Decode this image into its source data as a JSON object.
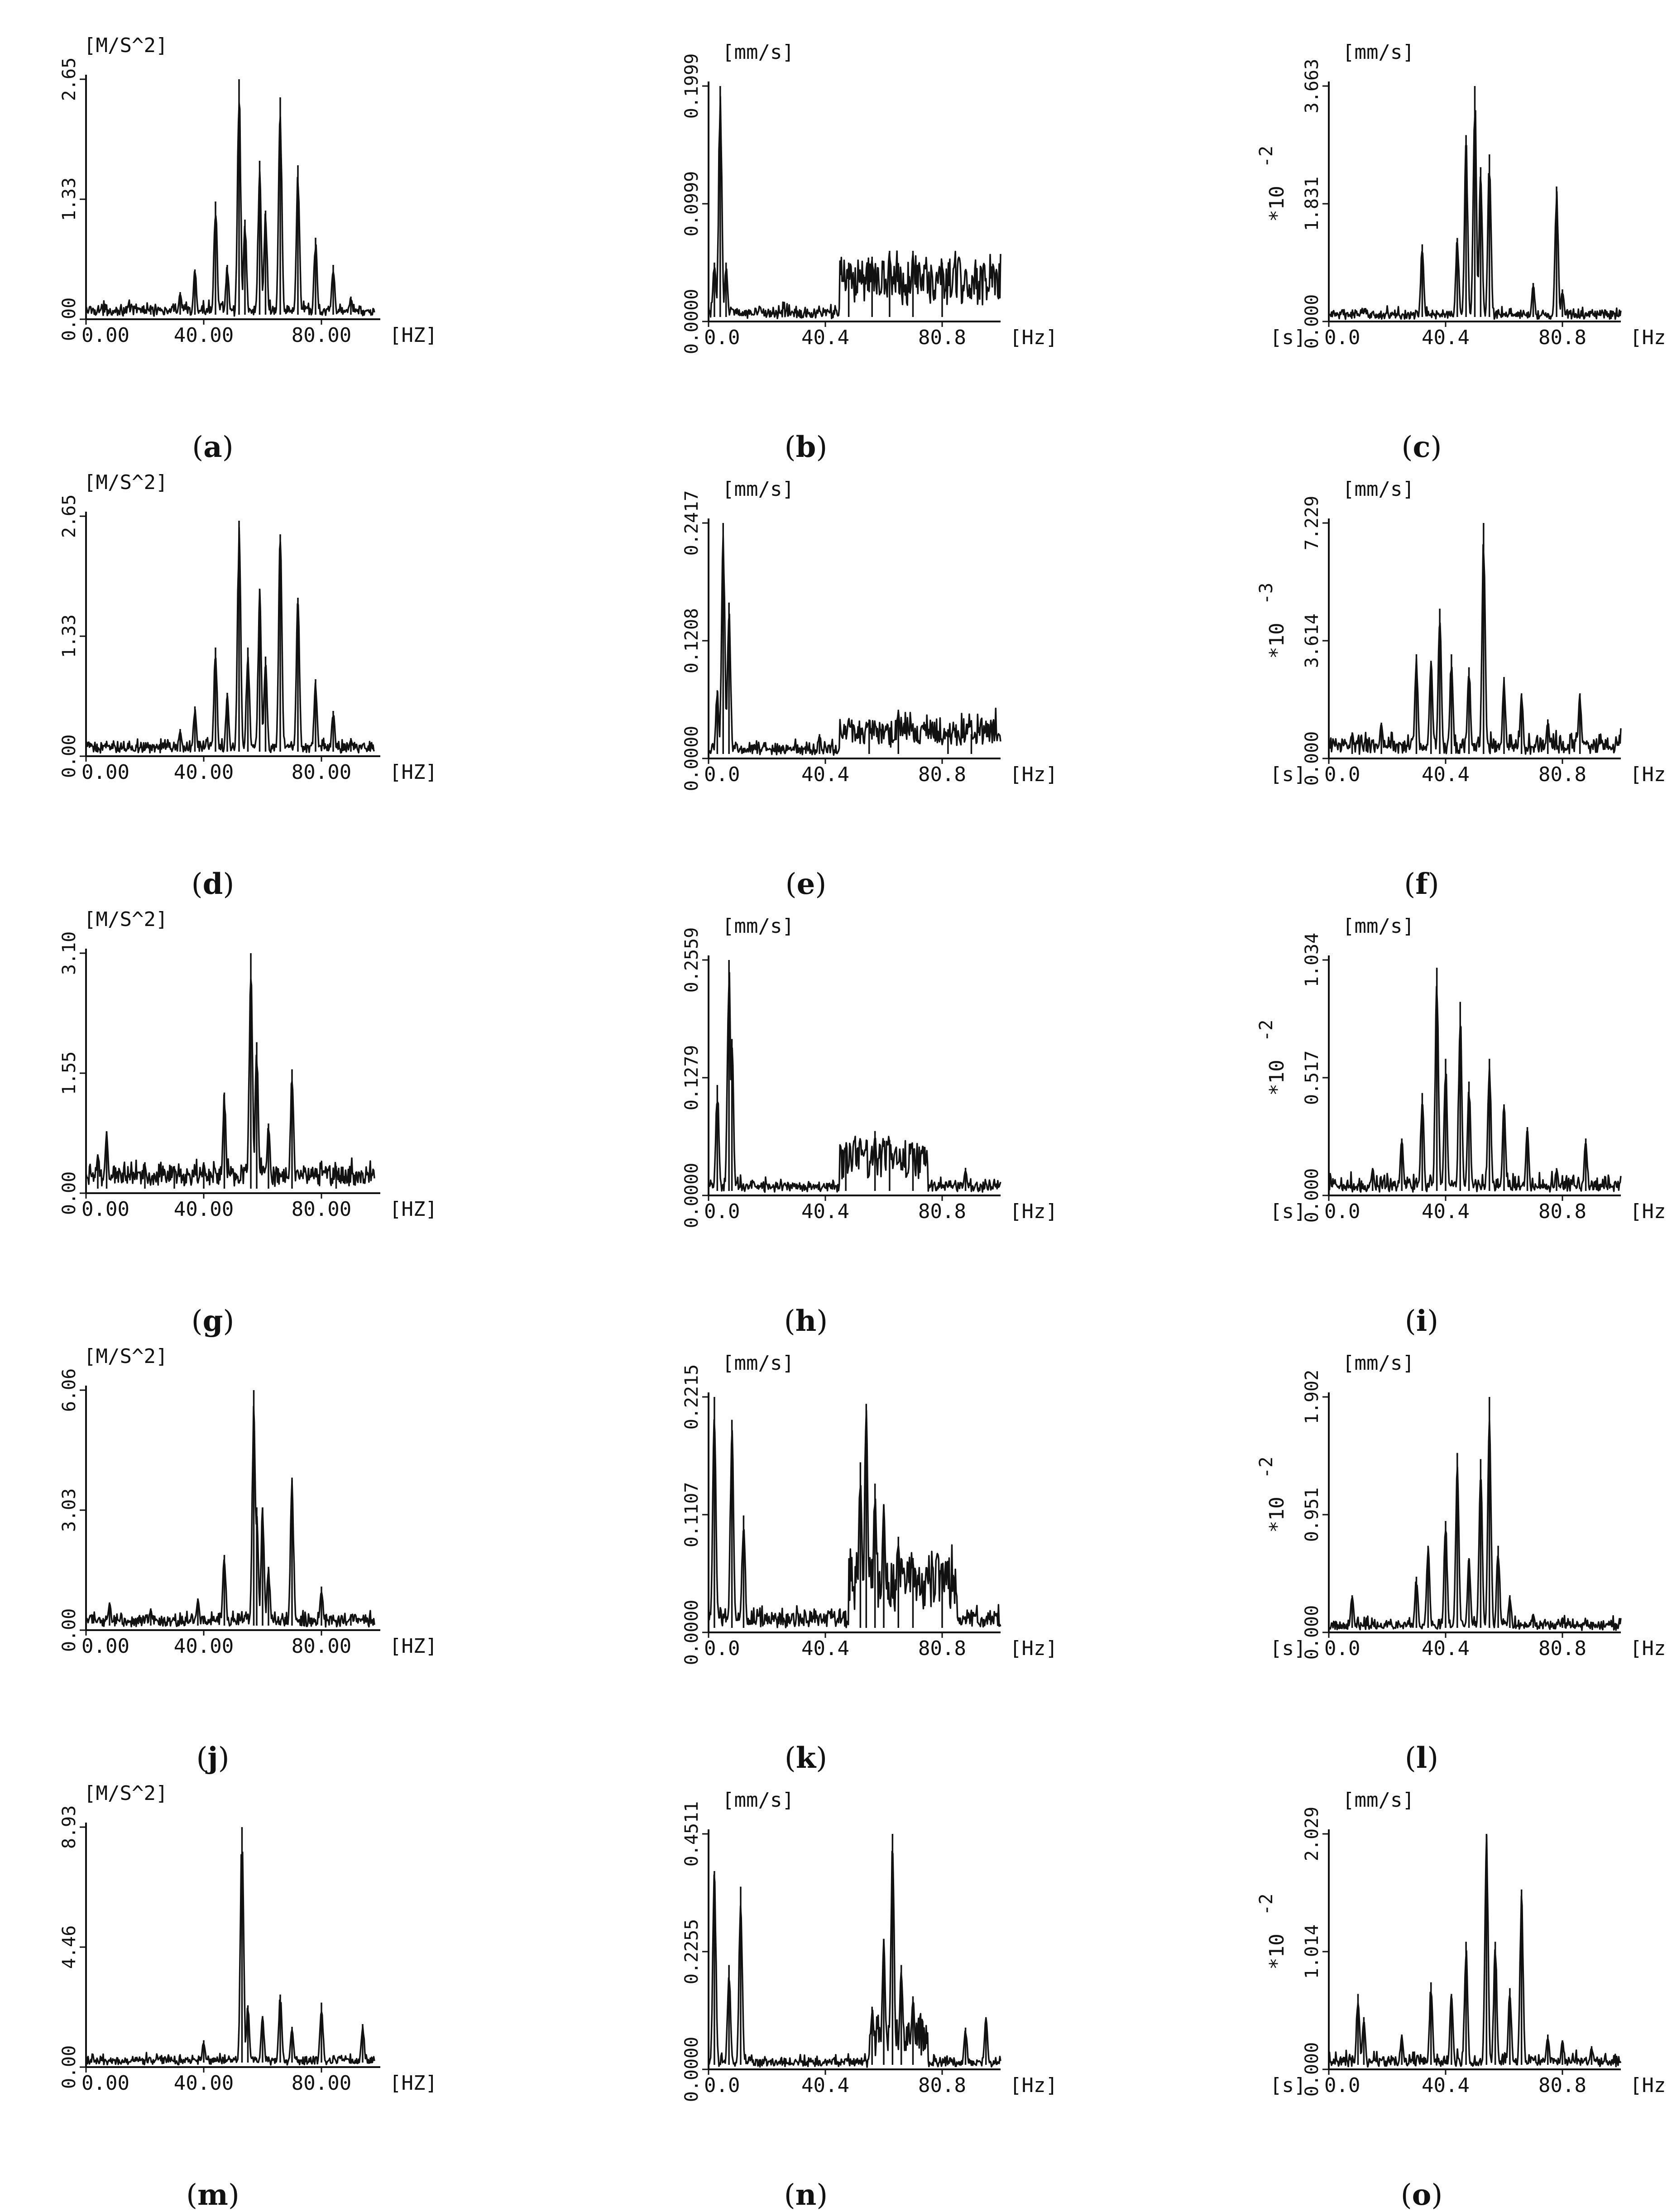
{
  "figure_title": "",
  "chart_data": [
    {
      "id": "a",
      "type": "line",
      "caption_letter": "a",
      "style": "acc",
      "yunit": "[M/S^2]",
      "multiplier_base": "",
      "multiplier_exp": "",
      "xlabel": "[HZ]",
      "xticks": [
        "0.00",
        "40.00",
        "80.00"
      ],
      "yticks": [
        "0.00",
        "1.33",
        "2.65"
      ],
      "xlim": [
        0,
        100
      ],
      "ylim": [
        0,
        2.65
      ],
      "lead_label": "",
      "peaks": [
        [
          52,
          2.65
        ],
        [
          66,
          2.45
        ],
        [
          59,
          1.75
        ],
        [
          72,
          1.7
        ],
        [
          44,
          1.3
        ],
        [
          54,
          1.1
        ],
        [
          61,
          1.2
        ],
        [
          78,
          0.9
        ],
        [
          37,
          0.55
        ],
        [
          48,
          0.6
        ],
        [
          84,
          0.6
        ],
        [
          32,
          0.3
        ],
        [
          90,
          0.25
        ],
        [
          22,
          0.15
        ]
      ],
      "background": 0.08,
      "noise": 0.06,
      "span": [
        0,
        98
      ]
    },
    {
      "id": "b",
      "type": "line",
      "caption_letter": "b",
      "style": "vel",
      "yunit": "[mm/s]",
      "multiplier_base": "",
      "multiplier_exp": "",
      "xlabel": "[Hz]",
      "xticks": [
        "0.0",
        "40.4",
        "80.8"
      ],
      "yticks": [
        "0.0000",
        "0.0999",
        "0.1999"
      ],
      "xlim": [
        0,
        100
      ],
      "ylim": [
        0,
        0.1999
      ],
      "lead_label": "",
      "peaks": [
        [
          4,
          0.1999
        ],
        [
          2,
          0.05
        ],
        [
          6,
          0.05
        ],
        [
          62,
          0.06
        ],
        [
          70,
          0.06
        ],
        [
          48,
          0.05
        ],
        [
          80,
          0.05
        ],
        [
          56,
          0.055
        ]
      ],
      "background": 0.006,
      "noise": 0.005,
      "band": [
        45,
        100,
        0.03
      ],
      "span": [
        0,
        100
      ]
    },
    {
      "id": "c",
      "type": "line",
      "caption_letter": "c",
      "style": "vel",
      "yunit": "[mm/s]",
      "multiplier_base": "*10",
      "multiplier_exp": "-2",
      "xlabel": "[Hz]",
      "xticks": [
        "0.0",
        "40.4",
        "80.8"
      ],
      "yticks": [
        "0.000",
        "1.831",
        "3.663"
      ],
      "xlim": [
        0,
        100
      ],
      "ylim": [
        0,
        3.663
      ],
      "lead_label": "[s]",
      "peaks": [
        [
          50,
          3.663
        ],
        [
          47,
          2.9
        ],
        [
          52,
          2.4
        ],
        [
          55,
          2.6
        ],
        [
          78,
          2.1
        ],
        [
          32,
          1.2
        ],
        [
          44,
          1.3
        ],
        [
          70,
          0.6
        ],
        [
          80,
          0.5
        ]
      ],
      "background": 0.08,
      "noise": 0.08,
      "span": [
        0,
        100
      ]
    },
    {
      "id": "d",
      "type": "line",
      "caption_letter": "d",
      "style": "acc",
      "yunit": "[M/S^2]",
      "multiplier_base": "",
      "multiplier_exp": "",
      "xlabel": "[HZ]",
      "xticks": [
        "0.00",
        "40.00",
        "80.00"
      ],
      "yticks": [
        "0.00",
        "1.33",
        "2.65"
      ],
      "xlim": [
        0,
        100
      ],
      "ylim": [
        0,
        2.65
      ],
      "lead_label": "",
      "peaks": [
        [
          52,
          2.6
        ],
        [
          66,
          2.45
        ],
        [
          59,
          1.85
        ],
        [
          72,
          1.75
        ],
        [
          44,
          1.2
        ],
        [
          55,
          1.2
        ],
        [
          61,
          1.1
        ],
        [
          78,
          0.85
        ],
        [
          37,
          0.55
        ],
        [
          48,
          0.7
        ],
        [
          84,
          0.5
        ],
        [
          32,
          0.3
        ],
        [
          90,
          0.2
        ]
      ],
      "background": 0.08,
      "noise": 0.06,
      "span": [
        0,
        98
      ]
    },
    {
      "id": "e",
      "type": "line",
      "caption_letter": "e",
      "style": "vel",
      "yunit": "[mm/s]",
      "multiplier_base": "",
      "multiplier_exp": "",
      "xlabel": "[Hz]",
      "xticks": [
        "0.0",
        "40.4",
        "80.8"
      ],
      "yticks": [
        "0.0000",
        "0.1208",
        "0.2417"
      ],
      "xlim": [
        0,
        100
      ],
      "ylim": [
        0,
        0.2417
      ],
      "lead_label": "",
      "peaks": [
        [
          5,
          0.2417
        ],
        [
          7,
          0.16
        ],
        [
          3,
          0.07
        ],
        [
          65,
          0.05
        ],
        [
          55,
          0.04
        ],
        [
          38,
          0.025
        ],
        [
          82,
          0.03
        ],
        [
          90,
          0.025
        ]
      ],
      "background": 0.008,
      "noise": 0.006,
      "band": [
        45,
        100,
        0.02
      ],
      "span": [
        0,
        100
      ]
    },
    {
      "id": "f",
      "type": "line",
      "caption_letter": "f",
      "style": "vel",
      "yunit": "[mm/s]",
      "multiplier_base": "*10",
      "multiplier_exp": "-3",
      "xlabel": "[Hz]",
      "xticks": [
        "0.0",
        "40.4",
        "80.8"
      ],
      "yticks": [
        "0.000",
        "3.614",
        "7.229"
      ],
      "xlim": [
        0,
        100
      ],
      "ylim": [
        0,
        7.229
      ],
      "lead_label": "[s]",
      "peaks": [
        [
          53,
          7.229
        ],
        [
          38,
          4.6
        ],
        [
          30,
          3.2
        ],
        [
          35,
          3.0
        ],
        [
          42,
          3.2
        ],
        [
          48,
          2.8
        ],
        [
          60,
          2.5
        ],
        [
          66,
          2.0
        ],
        [
          86,
          2.0
        ],
        [
          18,
          1.1
        ],
        [
          8,
          0.8
        ],
        [
          75,
          1.2
        ]
      ],
      "background": 0.3,
      "noise": 0.3,
      "span": [
        0,
        100
      ]
    },
    {
      "id": "g",
      "type": "line",
      "caption_letter": "g",
      "style": "acc",
      "yunit": "[M/S^2]",
      "multiplier_base": "",
      "multiplier_exp": "",
      "xlabel": "[HZ]",
      "xticks": [
        "0.00",
        "40.00",
        "80.00"
      ],
      "yticks": [
        "0.00",
        "1.55",
        "3.10"
      ],
      "xlim": [
        0,
        100
      ],
      "ylim": [
        0,
        3.1
      ],
      "lead_label": "",
      "peaks": [
        [
          56,
          3.1
        ],
        [
          58,
          1.95
        ],
        [
          70,
          1.6
        ],
        [
          47,
          1.3
        ],
        [
          7,
          0.8
        ],
        [
          4,
          0.5
        ],
        [
          62,
          0.9
        ],
        [
          40,
          0.4
        ],
        [
          30,
          0.35
        ],
        [
          20,
          0.4
        ],
        [
          85,
          0.35
        ]
      ],
      "background": 0.2,
      "noise": 0.12,
      "span": [
        0,
        98
      ]
    },
    {
      "id": "h",
      "type": "line",
      "caption_letter": "h",
      "style": "vel",
      "yunit": "[mm/s]",
      "multiplier_base": "",
      "multiplier_exp": "",
      "xlabel": "[Hz]",
      "xticks": [
        "0.0",
        "40.4",
        "80.8"
      ],
      "yticks": [
        "0.0000",
        "0.1279",
        "0.2559"
      ],
      "xlim": [
        0,
        100
      ],
      "ylim": [
        0,
        0.2559
      ],
      "lead_label": "",
      "peaks": [
        [
          7,
          0.2559
        ],
        [
          8,
          0.17
        ],
        [
          3,
          0.12
        ],
        [
          57,
          0.07
        ],
        [
          47,
          0.05
        ],
        [
          62,
          0.06
        ],
        [
          70,
          0.035
        ],
        [
          88,
          0.03
        ]
      ],
      "background": 0.008,
      "noise": 0.006,
      "band": [
        45,
        75,
        0.035
      ],
      "span": [
        0,
        100
      ]
    },
    {
      "id": "i",
      "type": "line",
      "caption_letter": "i",
      "style": "vel",
      "yunit": "[mm/s]",
      "multiplier_base": "*10",
      "multiplier_exp": "-2",
      "xlabel": "[Hz]",
      "xticks": [
        "0.0",
        "40.4",
        "80.8"
      ],
      "yticks": [
        "0.000",
        "0.517",
        "1.034"
      ],
      "xlim": [
        0,
        100
      ],
      "ylim": [
        0,
        1.034
      ],
      "lead_label": "[s]",
      "peaks": [
        [
          37,
          1.0
        ],
        [
          45,
          0.85
        ],
        [
          55,
          0.6
        ],
        [
          40,
          0.6
        ],
        [
          32,
          0.45
        ],
        [
          48,
          0.5
        ],
        [
          60,
          0.4
        ],
        [
          25,
          0.25
        ],
        [
          68,
          0.3
        ],
        [
          88,
          0.25
        ],
        [
          15,
          0.12
        ],
        [
          78,
          0.12
        ]
      ],
      "background": 0.03,
      "noise": 0.04,
      "span": [
        0,
        100
      ]
    },
    {
      "id": "j",
      "type": "line",
      "caption_letter": "j",
      "style": "acc",
      "yunit": "[M/S^2]",
      "multiplier_base": "",
      "multiplier_exp": "",
      "xlabel": "[HZ]",
      "xticks": [
        "0.00",
        "40.00",
        "80.00"
      ],
      "yticks": [
        "0.00",
        "3.03",
        "6.06"
      ],
      "xlim": [
        0,
        100
      ],
      "ylim": [
        0,
        6.06
      ],
      "lead_label": "",
      "peaks": [
        [
          57,
          6.06
        ],
        [
          70,
          3.85
        ],
        [
          58,
          3.1
        ],
        [
          60,
          3.1
        ],
        [
          47,
          1.9
        ],
        [
          62,
          1.6
        ],
        [
          80,
          1.1
        ],
        [
          38,
          0.8
        ],
        [
          8,
          0.7
        ],
        [
          22,
          0.55
        ],
        [
          90,
          0.4
        ]
      ],
      "background": 0.2,
      "noise": 0.15,
      "span": [
        0,
        98
      ]
    },
    {
      "id": "k",
      "type": "line",
      "caption_letter": "k",
      "style": "vel",
      "yunit": "[mm/s]",
      "multiplier_base": "",
      "multiplier_exp": "",
      "xlabel": "[Hz]",
      "xticks": [
        "0.0",
        "40.4",
        "80.8"
      ],
      "yticks": [
        "0.0000",
        "0.1107",
        "0.2215"
      ],
      "xlim": [
        0,
        100
      ],
      "ylim": [
        0,
        0.2215
      ],
      "lead_label": "",
      "peaks": [
        [
          2,
          0.2215
        ],
        [
          8,
          0.2
        ],
        [
          12,
          0.11
        ],
        [
          54,
          0.215
        ],
        [
          52,
          0.16
        ],
        [
          57,
          0.14
        ],
        [
          60,
          0.12
        ],
        [
          65,
          0.09
        ],
        [
          70,
          0.07
        ],
        [
          80,
          0.04
        ]
      ],
      "background": 0.01,
      "noise": 0.008,
      "band": [
        48,
        85,
        0.04
      ],
      "span": [
        0,
        100
      ]
    },
    {
      "id": "l",
      "type": "line",
      "caption_letter": "l",
      "style": "vel",
      "yunit": "[mm/s]",
      "multiplier_base": "*10",
      "multiplier_exp": "-2",
      "xlabel": "[Hz]",
      "xticks": [
        "0.0",
        "40.4",
        "80.8"
      ],
      "yticks": [
        "0.000",
        "0.951",
        "1.902"
      ],
      "xlim": [
        0,
        100
      ],
      "ylim": [
        0,
        1.902
      ],
      "lead_label": "[s]",
      "peaks": [
        [
          55,
          1.902
        ],
        [
          52,
          1.4
        ],
        [
          44,
          1.45
        ],
        [
          40,
          0.9
        ],
        [
          34,
          0.7
        ],
        [
          48,
          0.6
        ],
        [
          58,
          0.7
        ],
        [
          30,
          0.45
        ],
        [
          8,
          0.3
        ],
        [
          62,
          0.3
        ],
        [
          70,
          0.15
        ],
        [
          80,
          0.12
        ]
      ],
      "background": 0.04,
      "noise": 0.05,
      "span": [
        0,
        100
      ]
    },
    {
      "id": "m",
      "type": "line",
      "caption_letter": "m",
      "style": "acc",
      "yunit": "[M/S^2]",
      "multiplier_base": "",
      "multiplier_exp": "",
      "xlabel": "[HZ]",
      "xticks": [
        "0.00",
        "40.00",
        "80.00"
      ],
      "yticks": [
        "0.00",
        "4.46",
        "8.93"
      ],
      "xlim": [
        0,
        100
      ],
      "ylim": [
        0,
        8.93
      ],
      "lead_label": "",
      "peaks": [
        [
          53,
          8.93
        ],
        [
          66,
          2.7
        ],
        [
          80,
          2.4
        ],
        [
          55,
          2.3
        ],
        [
          60,
          1.9
        ],
        [
          94,
          1.6
        ],
        [
          40,
          1.0
        ],
        [
          70,
          1.5
        ],
        [
          28,
          0.4
        ]
      ],
      "background": 0.2,
      "noise": 0.15,
      "span": [
        0,
        98
      ]
    },
    {
      "id": "n",
      "type": "line",
      "caption_letter": "n",
      "style": "vel",
      "yunit": "[mm/s]",
      "multiplier_base": "",
      "multiplier_exp": "",
      "xlabel": "[Hz]",
      "xticks": [
        "0.0",
        "40.4",
        "80.8"
      ],
      "yticks": [
        "0.0000",
        "0.2255",
        "0.4511"
      ],
      "xlim": [
        0,
        100
      ],
      "ylim": [
        0,
        0.4511
      ],
      "lead_label": "",
      "peaks": [
        [
          63,
          0.4511
        ],
        [
          2,
          0.38
        ],
        [
          11,
          0.35
        ],
        [
          7,
          0.2
        ],
        [
          60,
          0.25
        ],
        [
          66,
          0.2
        ],
        [
          56,
          0.12
        ],
        [
          70,
          0.14
        ],
        [
          95,
          0.1
        ],
        [
          88,
          0.08
        ]
      ],
      "background": 0.01,
      "noise": 0.01,
      "band": [
        55,
        75,
        0.06
      ],
      "span": [
        0,
        100
      ]
    },
    {
      "id": "o",
      "type": "line",
      "caption_letter": "o",
      "style": "vel",
      "yunit": "[mm/s]",
      "multiplier_base": "*10",
      "multiplier_exp": "-2",
      "xlabel": "[Hz]",
      "xticks": [
        "0.0",
        "40.4",
        "80.8"
      ],
      "yticks": [
        "0.000",
        "1.014",
        "2.029"
      ],
      "xlim": [
        0,
        100
      ],
      "ylim": [
        0,
        2.029
      ],
      "lead_label": "[s]",
      "peaks": [
        [
          54,
          2.029
        ],
        [
          66,
          1.55
        ],
        [
          47,
          1.1
        ],
        [
          57,
          1.1
        ],
        [
          35,
          0.75
        ],
        [
          10,
          0.65
        ],
        [
          42,
          0.65
        ],
        [
          62,
          0.7
        ],
        [
          12,
          0.45
        ],
        [
          25,
          0.3
        ],
        [
          75,
          0.3
        ],
        [
          80,
          0.25
        ],
        [
          90,
          0.2
        ]
      ],
      "background": 0.05,
      "noise": 0.06,
      "span": [
        0,
        100
      ]
    }
  ]
}
